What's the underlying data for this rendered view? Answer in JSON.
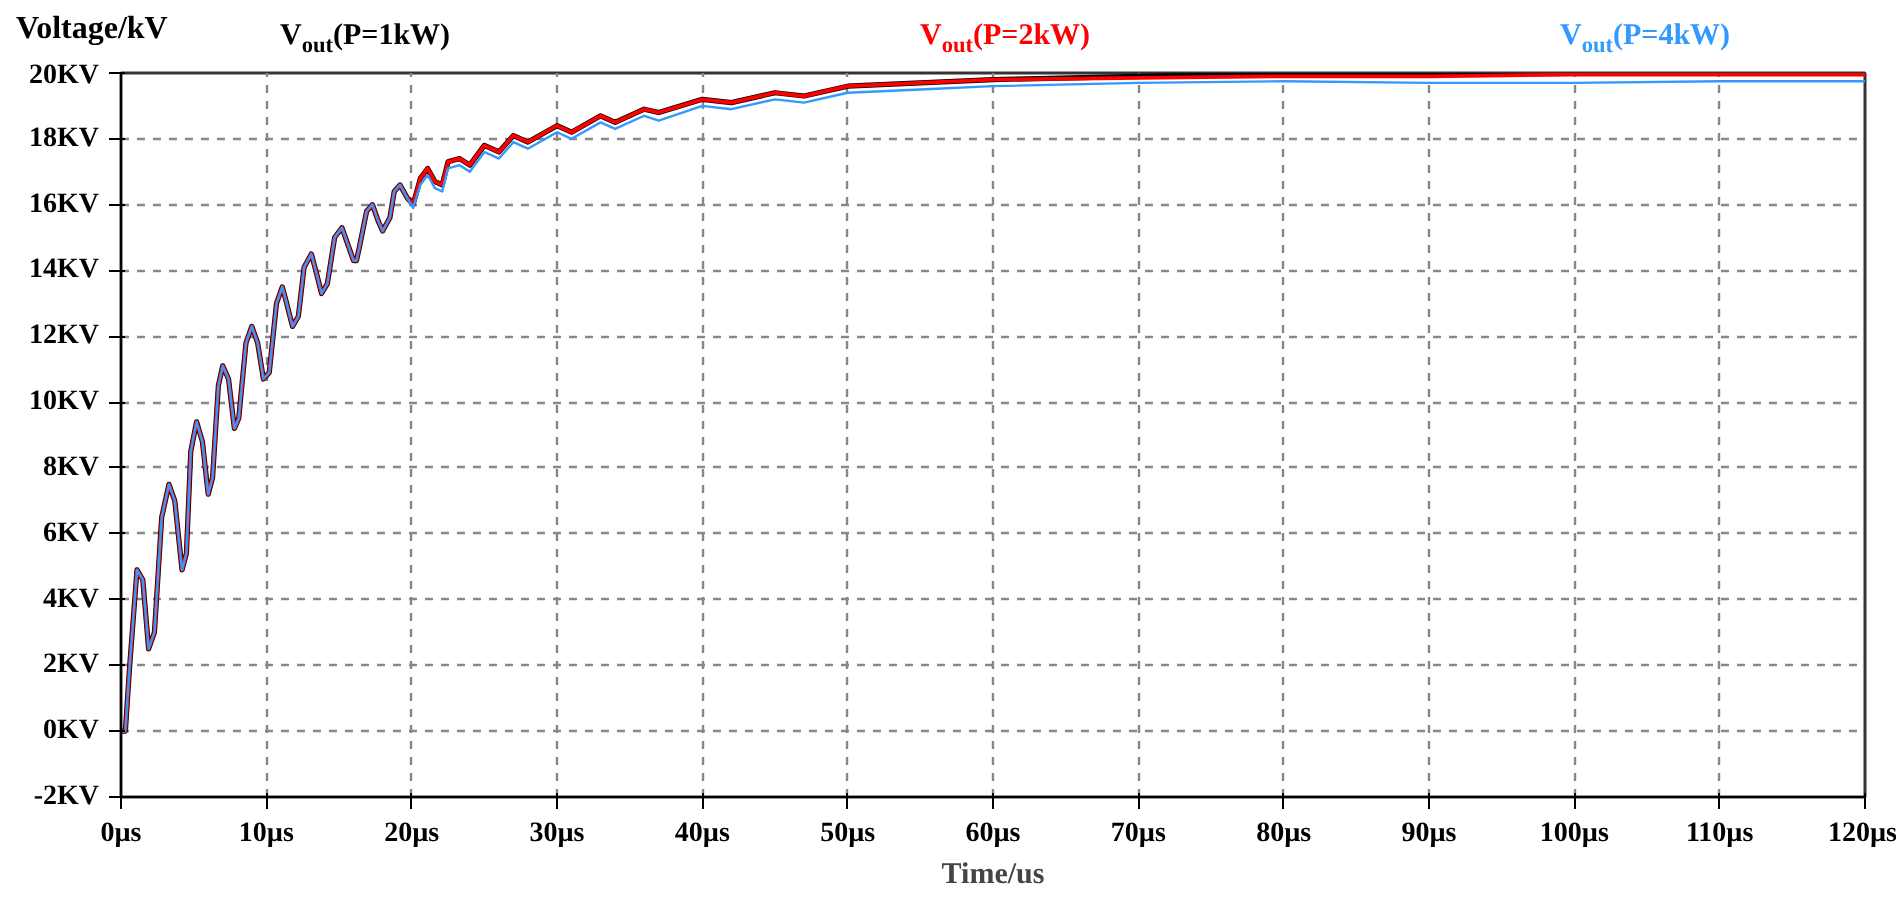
{
  "chart_data": {
    "type": "line",
    "ylabel": "Voltage/kV",
    "xlabel": "Time/us",
    "x": [
      0,
      0.3,
      0.6,
      1.1,
      1.5,
      1.9,
      2.3,
      2.8,
      3.3,
      3.7,
      4.2,
      4.5,
      4.8,
      5.2,
      5.6,
      6.0,
      6.3,
      6.7,
      7.0,
      7.4,
      7.8,
      8.1,
      8.6,
      9.0,
      9.4,
      9.8,
      10.2,
      10.7,
      11.1,
      11.4,
      11.8,
      12.2,
      12.6,
      13.1,
      13.4,
      13.8,
      14.2,
      14.7,
      15.2,
      15.6,
      16.0,
      16.2,
      16.4,
      16.9,
      17.3,
      17.7,
      18.0,
      18.5,
      18.8,
      19.2,
      19.7,
      20.1,
      20.6,
      21.1,
      21.6,
      22.1,
      22.5,
      23.3,
      24,
      25,
      26,
      27,
      28,
      30,
      31,
      33,
      34,
      36,
      37,
      40,
      42,
      45,
      47,
      50,
      55,
      60,
      70,
      80,
      90,
      100,
      110,
      120
    ],
    "series": [
      {
        "name": "V$_{out}$(P=1kW)",
        "color": "#000000",
        "values": [
          0,
          0,
          2.0,
          4.9,
          4.6,
          2.5,
          3.0,
          6.5,
          7.5,
          7.0,
          4.9,
          5.4,
          8.5,
          9.4,
          8.8,
          7.2,
          7.7,
          10.5,
          11.1,
          10.7,
          9.2,
          9.5,
          11.8,
          12.3,
          11.8,
          10.7,
          10.9,
          13.0,
          13.5,
          13.0,
          12.3,
          12.6,
          14.1,
          14.5,
          14.0,
          13.3,
          13.6,
          15.0,
          15.3,
          14.8,
          14.3,
          14.3,
          14.7,
          15.8,
          16.0,
          15.5,
          15.2,
          15.6,
          16.4,
          16.6,
          16.2,
          16.0,
          16.8,
          17.1,
          16.7,
          16.6,
          17.3,
          17.4,
          17.2,
          17.8,
          17.6,
          18.1,
          17.9,
          18.4,
          18.2,
          18.7,
          18.5,
          18.9,
          18.8,
          19.2,
          19.1,
          19.4,
          19.3,
          19.6,
          19.7,
          19.8,
          19.9,
          19.95,
          19.95,
          20.0,
          20.0,
          20.0
        ]
      },
      {
        "name": "V$_{out}$(P=2kW)",
        "color": "#ff0000",
        "values": [
          0,
          0,
          2.0,
          4.9,
          4.6,
          2.5,
          3.0,
          6.5,
          7.5,
          7.0,
          4.9,
          5.4,
          8.5,
          9.4,
          8.8,
          7.2,
          7.7,
          10.5,
          11.1,
          10.7,
          9.2,
          9.5,
          11.8,
          12.3,
          11.8,
          10.7,
          10.9,
          13.0,
          13.5,
          13.0,
          12.3,
          12.6,
          14.1,
          14.5,
          14.0,
          13.3,
          13.6,
          15.0,
          15.3,
          14.8,
          14.3,
          14.3,
          14.7,
          15.8,
          16.0,
          15.5,
          15.2,
          15.6,
          16.4,
          16.6,
          16.2,
          16.0,
          16.8,
          17.1,
          16.7,
          16.6,
          17.3,
          17.4,
          17.2,
          17.8,
          17.6,
          18.1,
          17.9,
          18.4,
          18.2,
          18.7,
          18.5,
          18.9,
          18.8,
          19.2,
          19.1,
          19.4,
          19.3,
          19.6,
          19.7,
          19.8,
          19.85,
          19.9,
          19.9,
          19.95,
          19.95,
          19.95
        ]
      },
      {
        "name": "V$_{out}$(P=4kW)",
        "color": "#3399ff",
        "values": [
          0,
          0,
          2.0,
          4.9,
          4.6,
          2.5,
          3.0,
          6.5,
          7.5,
          7.0,
          4.9,
          5.4,
          8.5,
          9.4,
          8.8,
          7.2,
          7.7,
          10.5,
          11.1,
          10.7,
          9.2,
          9.5,
          11.8,
          12.3,
          11.8,
          10.7,
          10.9,
          13.0,
          13.5,
          13.0,
          12.3,
          12.6,
          14.1,
          14.5,
          14.0,
          13.3,
          13.6,
          15.0,
          15.3,
          14.8,
          14.3,
          14.3,
          14.7,
          15.8,
          16.0,
          15.5,
          15.2,
          15.6,
          16.4,
          16.6,
          16.2,
          15.9,
          16.6,
          16.9,
          16.5,
          16.4,
          17.1,
          17.2,
          17.0,
          17.6,
          17.4,
          17.9,
          17.7,
          18.2,
          18.0,
          18.5,
          18.3,
          18.7,
          18.55,
          19.0,
          18.9,
          19.2,
          19.1,
          19.4,
          19.5,
          19.6,
          19.7,
          19.75,
          19.7,
          19.7,
          19.75,
          19.75
        ]
      }
    ],
    "xlim": [
      0,
      120
    ],
    "xticks": [
      {
        "value": 0,
        "label": "0µs"
      },
      {
        "value": 10,
        "label": "10µs"
      },
      {
        "value": 20,
        "label": "20µs"
      },
      {
        "value": 30,
        "label": "30µs"
      },
      {
        "value": 40,
        "label": "40µs"
      },
      {
        "value": 50,
        "label": "50µs"
      },
      {
        "value": 60,
        "label": "60µs"
      },
      {
        "value": 70,
        "label": "70µs"
      },
      {
        "value": 80,
        "label": "80µs"
      },
      {
        "value": 90,
        "label": "90µs"
      },
      {
        "value": 100,
        "label": "100µs"
      },
      {
        "value": 110,
        "label": "110µs"
      },
      {
        "value": 120,
        "label": "120µs"
      }
    ],
    "ylim": [
      -2,
      20
    ],
    "yticks": [
      {
        "value": -2,
        "label": "-2KV"
      },
      {
        "value": 0,
        "label": "0KV"
      },
      {
        "value": 2,
        "label": "2KV"
      },
      {
        "value": 4,
        "label": "4KV"
      },
      {
        "value": 6,
        "label": "6KV"
      },
      {
        "value": 8,
        "label": "8KV"
      },
      {
        "value": 10,
        "label": "10KV"
      },
      {
        "value": 12,
        "label": "12KV"
      },
      {
        "value": 14,
        "label": "14KV"
      },
      {
        "value": 16,
        "label": "16KV"
      },
      {
        "value": 18,
        "label": "18KV"
      },
      {
        "value": 20,
        "label": "20KV"
      }
    ],
    "grid": true,
    "legend": "top",
    "line_style": "solid",
    "marker": "none"
  }
}
